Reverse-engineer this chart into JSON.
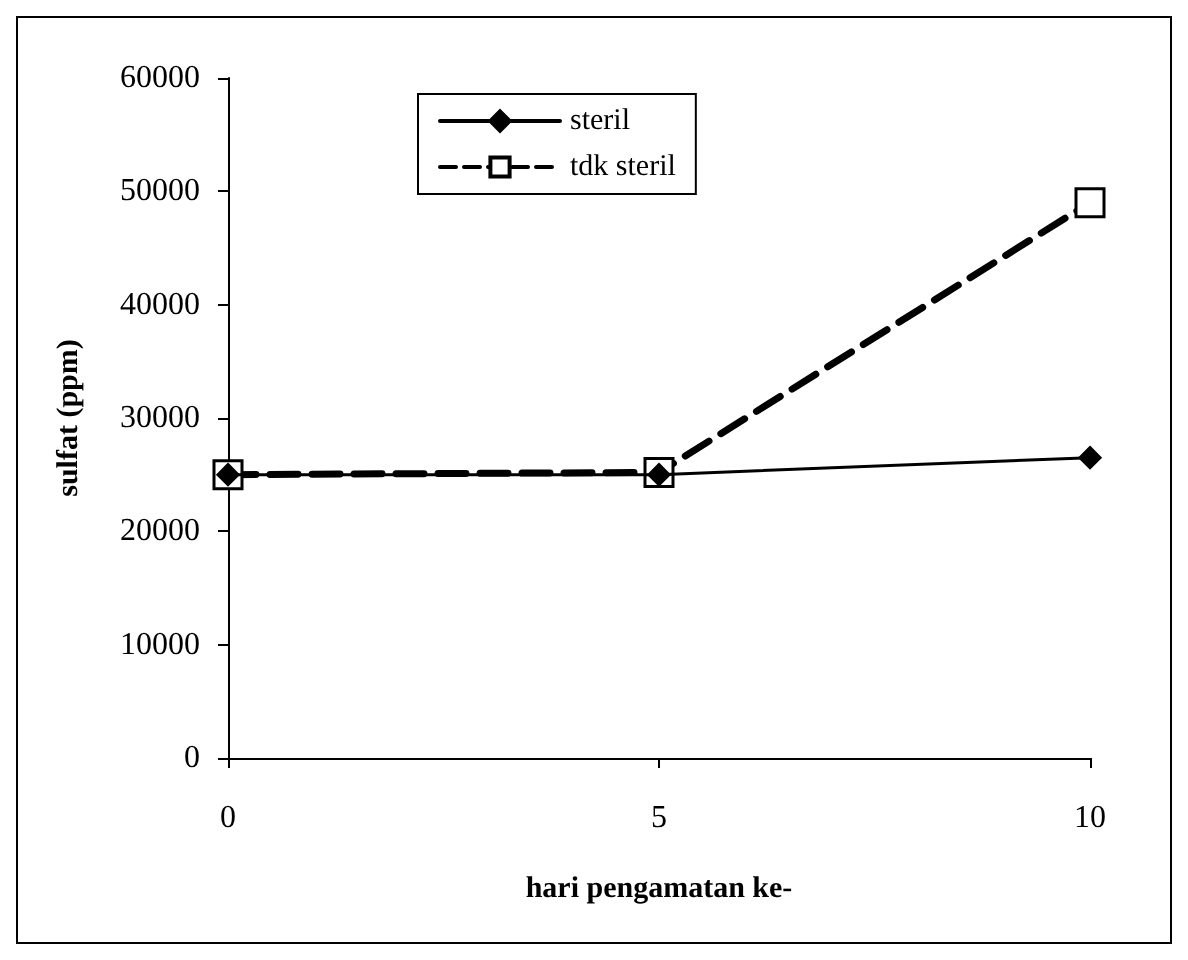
{
  "chart_data": {
    "type": "line",
    "xlabel": "hari pengamatan ke-",
    "ylabel": "sulfat (ppm)",
    "x": [
      0,
      5,
      10
    ],
    "series": [
      {
        "name": "steril",
        "color": "#000000",
        "values": [
          25000,
          25000,
          26500
        ],
        "marker": "diamond",
        "line_style": "solid"
      },
      {
        "name": "tdk steril",
        "color": "#000000",
        "values": [
          25000,
          25200,
          49000
        ],
        "marker": "square",
        "line_style": "dashed"
      }
    ],
    "xlim": [
      0,
      10
    ],
    "xticks": [
      0,
      5,
      10
    ],
    "ylim": [
      0,
      60000
    ],
    "yticks": [
      0,
      10000,
      20000,
      30000,
      40000,
      50000,
      60000
    ],
    "grid": false,
    "legend": "top left"
  }
}
